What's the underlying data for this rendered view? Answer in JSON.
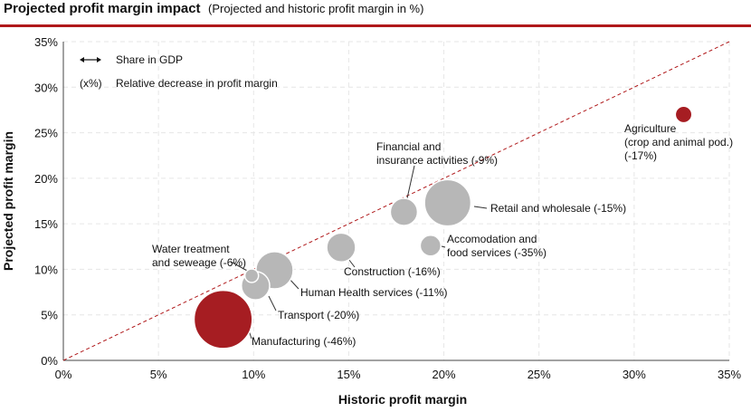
{
  "header": {
    "title": "Projected profit margin impact",
    "subtitle": "(Projected and historic profit margin in %)"
  },
  "legend": {
    "share_label": "Share in GDP",
    "decrease_symbol": "(x%)",
    "decrease_label": "Relative decrease in profit margin"
  },
  "colors": {
    "accent": "#b0191b",
    "highlight_bubble": "#a61d22",
    "grey_bubble": "#b7b7b7",
    "grid": "#e6e6e6",
    "diagonal": "#b0191b"
  },
  "chart_data": {
    "type": "scatter",
    "variant": "bubble",
    "title": "Projected profit margin impact",
    "subtitle": "(Projected and historic profit margin in %)",
    "xlabel": "Historic profit margin",
    "ylabel": "Projected profit margin",
    "xlim": [
      0,
      35
    ],
    "ylim": [
      0,
      35
    ],
    "x_ticks": [
      "0%",
      "5%",
      "10%",
      "15%",
      "20%",
      "25%",
      "30%",
      "35%"
    ],
    "y_ticks": [
      "0%",
      "5%",
      "10%",
      "15%",
      "20%",
      "25%",
      "30%",
      "35%"
    ],
    "grid": true,
    "reference_line": "y = x (dashed)",
    "points": [
      {
        "label": [
          "Agriculture",
          "(crop and animal pod.)",
          "(-17%)"
        ],
        "x": 32.6,
        "y": 27.0,
        "size": 0.9,
        "highlight": true
      },
      {
        "label": [
          "Financial and",
          "insurance activities (-9%)"
        ],
        "x": 17.9,
        "y": 16.3,
        "size": 2.4,
        "highlight": false
      },
      {
        "label": [
          "Retail and wholesale (-15%)"
        ],
        "x": 20.2,
        "y": 17.3,
        "size": 7.0,
        "highlight": false
      },
      {
        "label": [
          "Accomodation and",
          "food services (-35%)"
        ],
        "x": 19.3,
        "y": 12.6,
        "size": 1.4,
        "highlight": false
      },
      {
        "label": [
          "Construction (-16%)"
        ],
        "x": 14.6,
        "y": 12.4,
        "size": 2.7,
        "highlight": false
      },
      {
        "label": [
          "Water treatment",
          "and seweage (-6%)"
        ],
        "x": 9.9,
        "y": 9.3,
        "size": 0.6,
        "highlight": false
      },
      {
        "label": [
          "Human Health services (-11%)"
        ],
        "x": 11.1,
        "y": 9.9,
        "size": 4.5,
        "highlight": false
      },
      {
        "label": [
          "Transport (-20%)"
        ],
        "x": 10.1,
        "y": 8.2,
        "size": 2.6,
        "highlight": false
      },
      {
        "label": [
          "Manufacturing (-46%)"
        ],
        "x": 8.4,
        "y": 4.5,
        "size": 11.0,
        "highlight": true
      }
    ]
  }
}
